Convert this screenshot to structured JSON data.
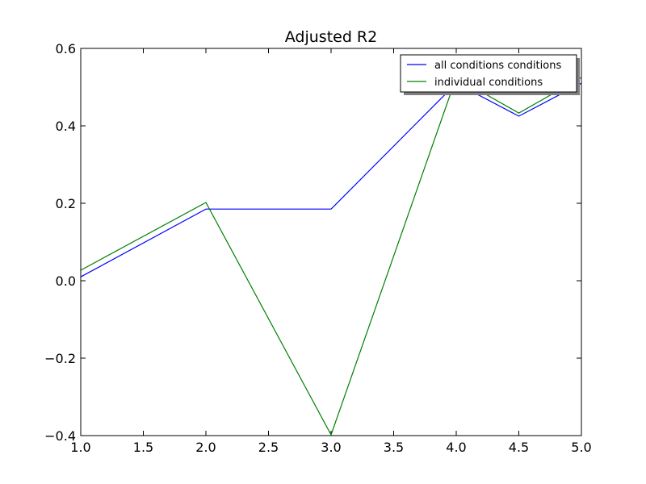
{
  "chart_data": {
    "type": "line",
    "title": "Adjusted R2",
    "xlabel": "",
    "ylabel": "",
    "xlim": [
      1.0,
      5.0
    ],
    "ylim": [
      -0.4,
      0.6
    ],
    "x_ticks": [
      1.0,
      1.5,
      2.0,
      2.5,
      3.0,
      3.5,
      4.0,
      4.5,
      5.0
    ],
    "x_tick_labels": [
      "1.0",
      "1.5",
      "2.0",
      "2.5",
      "3.0",
      "3.5",
      "4.0",
      "4.5",
      "5.0"
    ],
    "y_ticks": [
      -0.4,
      -0.2,
      0.0,
      0.2,
      0.4,
      0.6
    ],
    "y_tick_labels": [
      "−0.4",
      "−0.2",
      "0.0",
      "0.2",
      "0.4",
      "0.6"
    ],
    "grid": false,
    "legend_position": "top-right",
    "series": [
      {
        "name": "all conditions conditions",
        "color": "#0000ff",
        "x": [
          1.0,
          2.0,
          3.0,
          4.0,
          4.5,
          5.0
        ],
        "y": [
          0.01,
          0.185,
          0.185,
          0.51,
          0.425,
          0.51
        ]
      },
      {
        "name": "individual conditions",
        "color": "#008000",
        "x": [
          1.0,
          2.0,
          3.0,
          4.0,
          4.5,
          5.0
        ],
        "y": [
          0.027,
          0.202,
          -0.398,
          0.525,
          0.433,
          0.525
        ]
      }
    ]
  }
}
